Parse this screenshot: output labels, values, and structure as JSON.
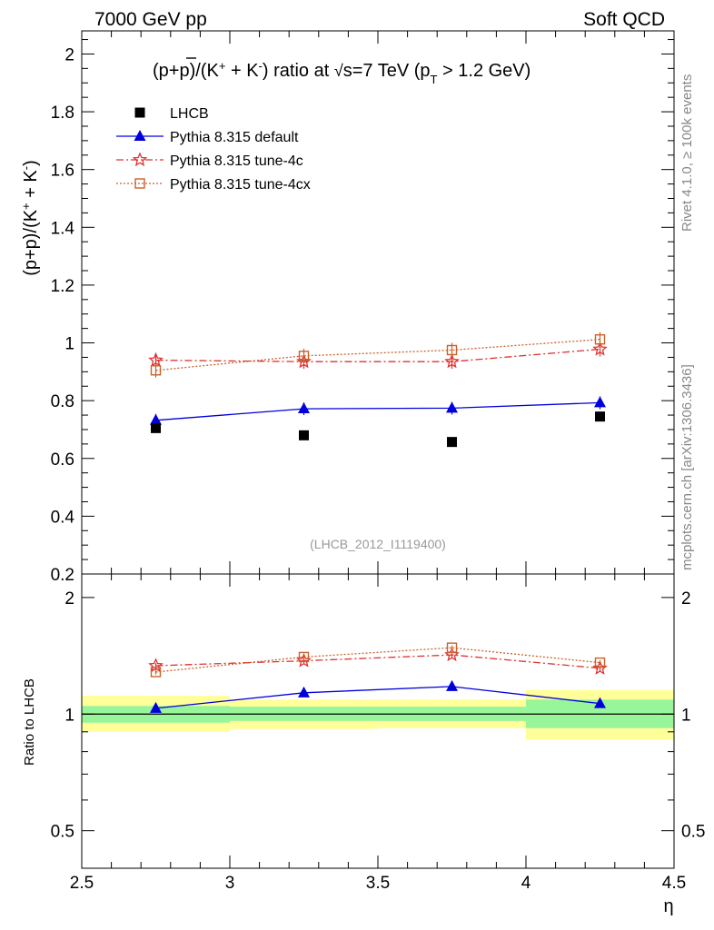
{
  "header": {
    "left": "7000 GeV pp",
    "right": "Soft QCD"
  },
  "side_labels": {
    "top": "Rivet 4.1.0, ≥ 100k events",
    "bottom": "mcplots.cern.ch [arXiv:1306.3436]"
  },
  "colors": {
    "data": "#000000",
    "default": "#0000dd",
    "tune4c": "#e03030",
    "tune4cx": "#c8622a",
    "band_inner": "#99f599",
    "band_outer": "#ffff99"
  },
  "chart_data": [
    {
      "type": "scatter",
      "title": "(p+p̄)/(K⁺ + K⁻) ratio at √s=7 TeV (p_T > 1.2 GeV)",
      "title_parts": {
        "main": "(p+p)/(K",
        "pbar": "p",
        "mid": " + K",
        "end": ") ratio at ",
        "sqrt": "√",
        "s_eq": "s=7 TeV (p",
        "T": "T",
        "cut": " > 1.2 GeV)"
      },
      "ylabel": "(p+p̄)/(K⁺ + K⁻)",
      "xlabel": "η",
      "xlim": [
        2.5,
        4.5
      ],
      "ylim": [
        0.2,
        2.08
      ],
      "yticks": [
        0.2,
        0.4,
        0.6,
        0.8,
        1,
        1.2,
        1.4,
        1.6,
        1.8,
        2
      ],
      "ytick_labels": [
        "0.2",
        "0.4",
        "0.6",
        "0.8",
        "1",
        "1.2",
        "1.4",
        "1.6",
        "1.8",
        "2"
      ],
      "watermark": "(LHCB_2012_I1119400)",
      "legend_position": "top-left",
      "x": [
        2.75,
        3.25,
        3.75,
        4.25
      ],
      "x_bins": [
        [
          2.5,
          3.0
        ],
        [
          3.0,
          3.5
        ],
        [
          3.5,
          4.0
        ],
        [
          4.0,
          4.5
        ]
      ],
      "series": [
        {
          "name": "LHCB",
          "values": [
            0.705,
            0.68,
            0.657,
            0.745
          ],
          "err": [
            0.01,
            0.01,
            0.01,
            0.01
          ]
        },
        {
          "name": "Pythia 8.315 default",
          "values": [
            0.732,
            0.772,
            0.774,
            0.793
          ],
          "err": [
            0.022,
            0.022,
            0.022,
            0.022
          ]
        },
        {
          "name": "Pythia 8.315 tune-4c",
          "values": [
            0.94,
            0.935,
            0.935,
            0.978
          ],
          "err": [
            0.025,
            0.025,
            0.025,
            0.025
          ]
        },
        {
          "name": "Pythia 8.315 tune-4cx",
          "values": [
            0.905,
            0.955,
            0.975,
            1.012
          ],
          "err": [
            0.025,
            0.025,
            0.025,
            0.025
          ]
        }
      ]
    },
    {
      "type": "scatter",
      "title": "",
      "ylabel": "Ratio to LHCB",
      "xlabel": "η",
      "xlim": [
        2.5,
        4.5
      ],
      "ylim": [
        0.4,
        2.3
      ],
      "scale": "log",
      "yticks": [
        0.5,
        1,
        2
      ],
      "ytick_labels": [
        "0.5",
        "1",
        "2"
      ],
      "xticks": [
        2.5,
        3,
        3.5,
        4,
        4.5
      ],
      "xtick_labels": [
        "2.5",
        "3",
        "3.5",
        "4",
        "4.5"
      ],
      "x": [
        2.75,
        3.25,
        3.75,
        4.25
      ],
      "x_bins": [
        [
          2.5,
          3.0
        ],
        [
          3.0,
          3.5
        ],
        [
          3.5,
          4.0
        ],
        [
          4.0,
          4.5
        ]
      ],
      "band_inner": [
        [
          0.95,
          1.05
        ],
        [
          0.96,
          1.045
        ],
        [
          0.96,
          1.045
        ],
        [
          0.92,
          1.09
        ]
      ],
      "band_outer": [
        [
          0.9,
          1.115
        ],
        [
          0.915,
          1.09
        ],
        [
          0.92,
          1.09
        ],
        [
          0.86,
          1.155
        ]
      ],
      "series": [
        {
          "name": "Pythia 8.315 default",
          "values": [
            1.035,
            1.135,
            1.178,
            1.065
          ],
          "err": [
            0.015,
            0.015,
            0.015,
            0.015
          ]
        },
        {
          "name": "Pythia 8.315 tune-4c",
          "values": [
            1.333,
            1.373,
            1.422,
            1.313
          ],
          "err": [
            0.02,
            0.02,
            0.02,
            0.02
          ]
        },
        {
          "name": "Pythia 8.315 tune-4cx",
          "values": [
            1.284,
            1.404,
            1.484,
            1.358
          ],
          "err": [
            0.02,
            0.02,
            0.02,
            0.02
          ]
        }
      ]
    }
  ]
}
